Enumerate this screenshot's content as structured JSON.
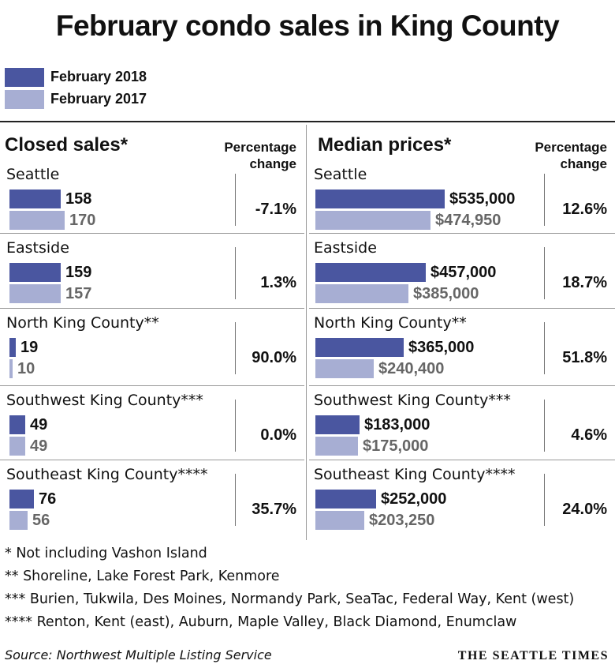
{
  "title": "February condo sales in King County",
  "legend": [
    {
      "label": "February 2018",
      "color": "#4a56a0"
    },
    {
      "label": "February 2017",
      "color": "#a7aed3"
    }
  ],
  "chart_data": [
    {
      "type": "bar",
      "title": "Closed sales*",
      "change_header": "Percentage change",
      "categories": [
        "Seattle",
        "Eastside",
        "North King County**",
        "Southwest King County***",
        "Southeast King County****"
      ],
      "series": [
        {
          "name": "February 2018",
          "values": [
            158,
            159,
            19,
            49,
            76
          ],
          "labels": [
            "158",
            "159",
            "19",
            "49",
            "76"
          ]
        },
        {
          "name": "February 2017",
          "values": [
            170,
            157,
            10,
            49,
            56
          ],
          "labels": [
            "170",
            "157",
            "10",
            "49",
            "56"
          ]
        }
      ],
      "change": [
        "-7.1%",
        "1.3%",
        "90.0%",
        "0.0%",
        "35.7%"
      ]
    },
    {
      "type": "bar",
      "title": "Median prices*",
      "change_header": "Percentage change",
      "categories": [
        "Seattle",
        "Eastside",
        "North King County**",
        "Southwest King County***",
        "Southeast King County****"
      ],
      "series": [
        {
          "name": "February 2018",
          "values": [
            535000,
            457000,
            365000,
            183000,
            252000
          ],
          "labels": [
            "$535,000",
            "$457,000",
            "$365,000",
            "$183,000",
            "$252,000"
          ]
        },
        {
          "name": "February 2017",
          "values": [
            474950,
            385000,
            240400,
            175000,
            203250
          ],
          "labels": [
            "$474,950",
            "$385,000",
            "$240,400",
            "$175,000",
            "$203,250"
          ]
        }
      ],
      "change": [
        "12.6%",
        "18.7%",
        "51.8%",
        "4.6%",
        "24.0%"
      ]
    }
  ],
  "footnotes": [
    "* Not including Vashon Island",
    "**  Shoreline, Lake Forest Park, Kenmore",
    "*** Burien, Tukwila, Des Moines, Normandy Park, SeaTac, Federal Way, Kent (west)",
    "**** Renton, Kent (east), Auburn, Maple Valley, Black Diamond, Enumclaw"
  ],
  "source": "Source: Northwest Multiple Listing Service",
  "credit": "THE SEATTLE TIMES"
}
